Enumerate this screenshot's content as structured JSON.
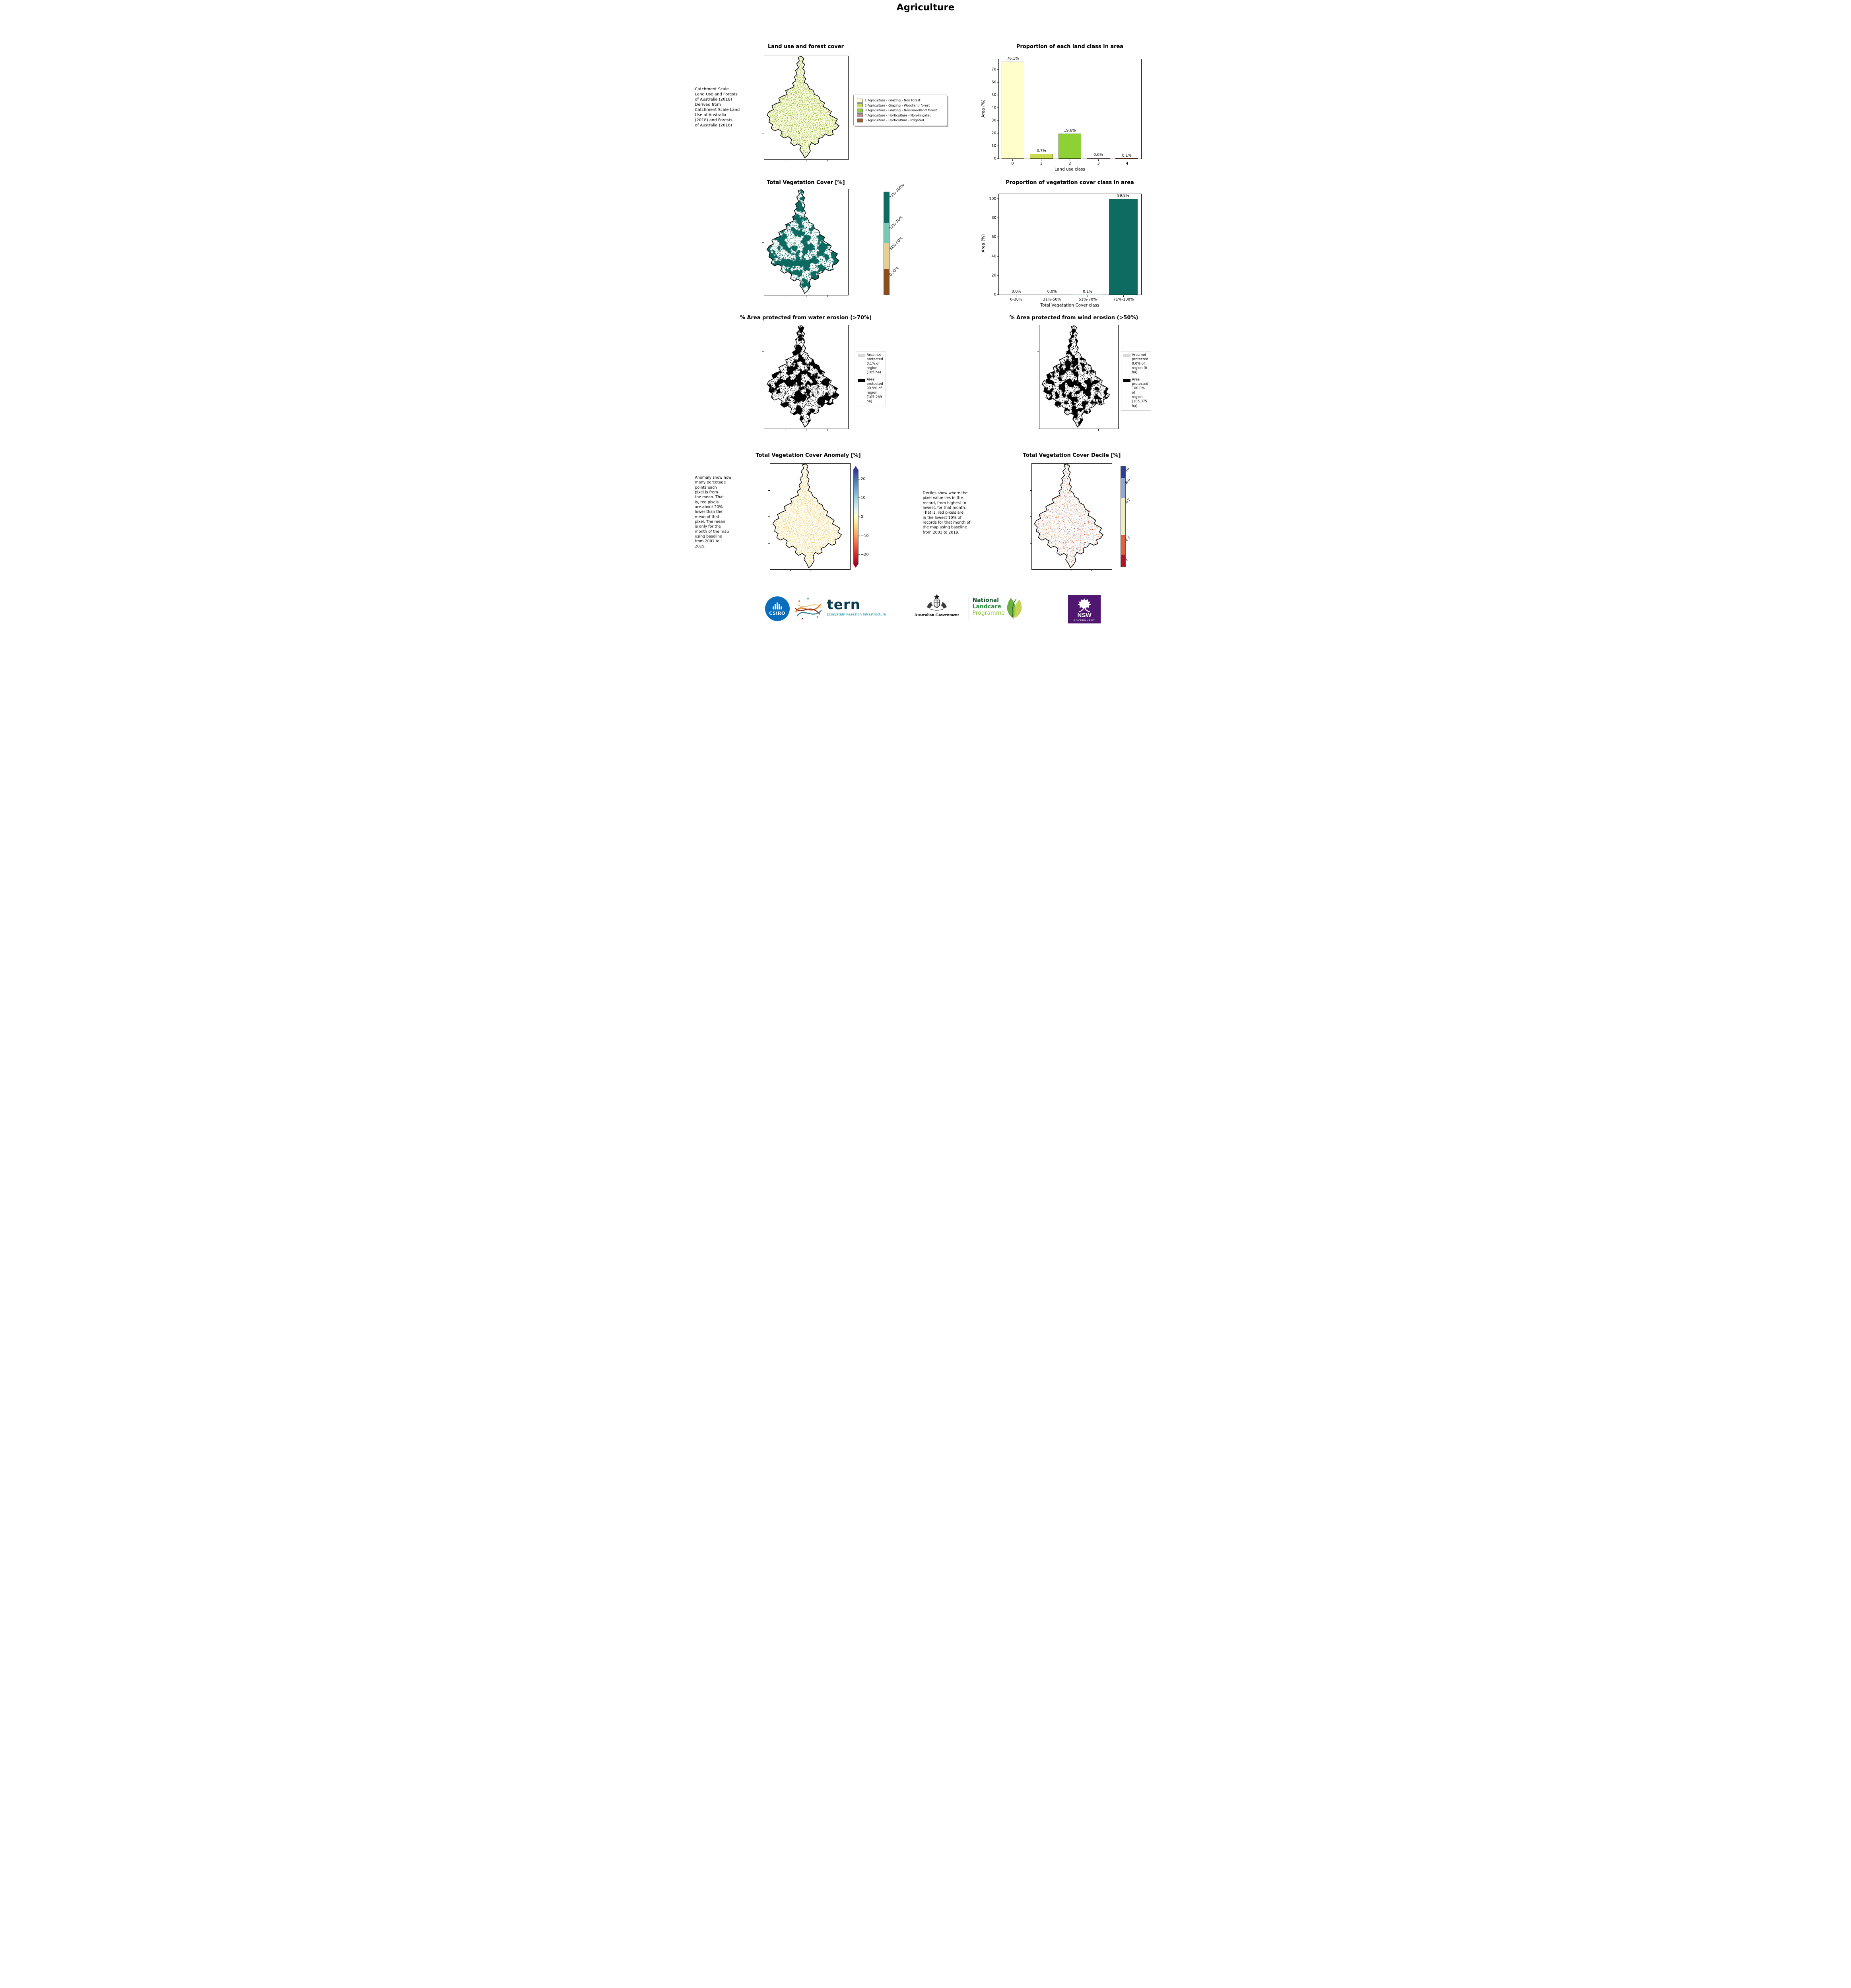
{
  "page": {
    "title": "Agriculture"
  },
  "chart_data": [
    {
      "type": "bar",
      "title": "Proportion of each land class in area",
      "xlabel": "Land use class",
      "ylabel": "Area (%)",
      "categories": [
        "0",
        "1",
        "2",
        "3",
        "4"
      ],
      "values": [
        76.1,
        3.7,
        19.6,
        0.6,
        0.1
      ],
      "value_labels": [
        "76.1%",
        "3.7%",
        "19.6%",
        "0.6%",
        "0.1%"
      ],
      "bar_colors": [
        "#ffffcc",
        "#cadd51",
        "#8ed135",
        "#bc8f8f",
        "#9e5b2b"
      ],
      "yticks": [
        "0",
        "10",
        "20",
        "30",
        "40",
        "50",
        "60",
        "70"
      ],
      "ytick_values": [
        0,
        10,
        20,
        30,
        40,
        50,
        60,
        70
      ],
      "ylim": [
        0,
        78
      ],
      "grid": false,
      "legend_position": "none"
    },
    {
      "type": "bar",
      "title": "Proportion of vegetation cover class in area",
      "xlabel": "Total Vegetation Cover class",
      "ylabel": "Area (%)",
      "categories": [
        "0-30%",
        "31%-50%",
        "51%-70%",
        "71%-100%"
      ],
      "values": [
        0.0,
        0.0,
        0.1,
        99.9
      ],
      "value_labels": [
        "0.0%",
        "0.0%",
        "0.1%",
        "99.9%"
      ],
      "bar_color": "#0d6b61",
      "yticks": [
        "0",
        "20",
        "40",
        "60",
        "80",
        "100"
      ],
      "ytick_values": [
        0,
        20,
        40,
        60,
        80,
        100
      ],
      "ylim": [
        0,
        105
      ],
      "grid": false,
      "legend_position": "none"
    }
  ],
  "landuse": {
    "title": "Land use and forest cover",
    "side_text": " Catchment Scale\nLand Use and Forests\nof Australia (2018)\nDerived from\nCatchment Scale Land\nUse of Australia\n(2018) and Forests\nof Australia (2018)",
    "legend": [
      {
        "label": "1 Agriculture - Grazing - Non forest",
        "color": "#ffffcc"
      },
      {
        "label": "2 Agriculture - Grazing - Woodland forest",
        "color": "#cadd51"
      },
      {
        "label": "3 Agriculture - Grazing - Non-woodland forest",
        "color": "#8ed135"
      },
      {
        "label": "4 Agriculture - Horticulture - Non-irrigated",
        "color": "#bc8f8f"
      },
      {
        "label": "5 Agriculture - Horticulture - Irrigated",
        "color": "#9e5b2b"
      }
    ]
  },
  "vegcover": {
    "title": "Total Vegetation Cover [%]",
    "colorbar": [
      {
        "label": "71%-100%",
        "color": "#0d6b61"
      },
      {
        "label": "51%-70%",
        "color": "#79c7b4"
      },
      {
        "label": "31%-50%",
        "color": "#e4d096"
      },
      {
        "label": "0-30%",
        "color": "#8a4d1f"
      }
    ]
  },
  "water_erosion": {
    "title": "% Area protected from water erosion (>70%)",
    "legend": [
      {
        "color": "#d9d9d9",
        "text": "Area not\nprotected\n0.1% of\nregion\n(105 ha)"
      },
      {
        "color": "#000000",
        "text": "Area\nprotected\n99.9% of\nregion\n(105,269\nha)"
      }
    ]
  },
  "wind_erosion": {
    "title": "% Area protected from wind erosion (>50%)",
    "legend": [
      {
        "color": "#d9d9d9",
        "text": "Area not\nprotected\n0.0% of\nregion (0\nha)"
      },
      {
        "color": "#000000",
        "text": "Area\nprotected\n100.0% of\nregion\n(105,375\nha)"
      }
    ]
  },
  "anomaly": {
    "title": "Total Vegetation Cover Anomaly [%]",
    "side_text": "Anomaly show how\nmany percetage\npoints each\npixel is from\nthe mean. That\nis, red pixels\nare about 20%\nlower than the\nmean of that\npixel. The mean\nis only for the\nmonth of the map\nusing baseline\nfrom 2001 to\n2019.",
    "ticks": [
      "20",
      "10",
      "0",
      "−10",
      "−20"
    ]
  },
  "decile": {
    "title": "Total Vegetation Cover Decile [%]",
    "side_text": "Deciles show where the\npixel value lies in the\nrecord, from highest to\nlowest, for that month.\nThat is, red pixels are\nin the lowest 10% of\nrecords for that month of\nthe map using baseline\nfrom 2001 to 2019.",
    "colorbar": [
      {
        "label": "10",
        "color": "#2c3e9c"
      },
      {
        "label": "8-9",
        "color": "#93a9d4"
      },
      {
        "label": "4-7",
        "color": "#f0ecc2"
      },
      {
        "label": "2-3",
        "color": "#e2603c"
      },
      {
        "label": "1",
        "color": "#b01426"
      }
    ]
  },
  "footer": {
    "csiro": "CSIRO",
    "tern": "tern",
    "tern_sub": "Ecosystem Research Infrastructure",
    "ausgov": "Australian Government",
    "landcare_1": "National",
    "landcare_2": "Landcare",
    "landcare_3": "Programme",
    "nsw": "NSW",
    "nsw_sub": "GOVERNMENT"
  }
}
